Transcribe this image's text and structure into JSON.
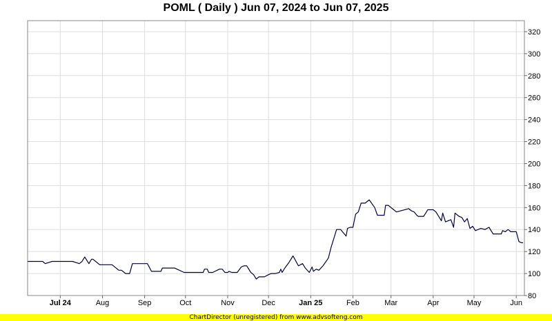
{
  "chart_data": {
    "type": "line",
    "title": "POML ( Daily ) Jun 07, 2024 to Jun 07, 2025",
    "xlabel": "",
    "ylabel": "",
    "ylim": [
      80,
      330
    ],
    "yticks": [
      80,
      100,
      120,
      140,
      160,
      180,
      200,
      220,
      240,
      260,
      280,
      300,
      320
    ],
    "xticks": [
      {
        "label": "Jul 24",
        "date": "2024-07-01",
        "bold": true
      },
      {
        "label": "Aug",
        "date": "2024-08-01",
        "bold": false
      },
      {
        "label": "Sep",
        "date": "2024-09-01",
        "bold": false
      },
      {
        "label": "Oct",
        "date": "2024-10-01",
        "bold": false
      },
      {
        "label": "Nov",
        "date": "2024-11-01",
        "bold": false
      },
      {
        "label": "Dec",
        "date": "2024-12-01",
        "bold": false
      },
      {
        "label": "Jan 25",
        "date": "2025-01-01",
        "bold": true
      },
      {
        "label": "Feb",
        "date": "2025-02-01",
        "bold": false
      },
      {
        "label": "Mar",
        "date": "2025-03-01",
        "bold": false
      },
      {
        "label": "Apr",
        "date": "2025-04-01",
        "bold": false
      },
      {
        "label": "May",
        "date": "2025-05-01",
        "bold": false
      },
      {
        "label": "Jun",
        "date": "2025-06-01",
        "bold": false
      }
    ],
    "grid": true,
    "line_color": "#000040",
    "series": [
      {
        "x": [
          "2024-06-07",
          "2024-06-14",
          "2024-06-18",
          "2024-06-20",
          "2024-06-25",
          "2024-07-01",
          "2024-07-10",
          "2024-07-15",
          "2024-07-17",
          "2024-07-19",
          "2024-07-22",
          "2024-07-24",
          "2024-07-25",
          "2024-07-30",
          "2024-08-01",
          "2024-08-05",
          "2024-08-08",
          "2024-08-13",
          "2024-08-15",
          "2024-08-18",
          "2024-08-20",
          "2024-08-21",
          "2024-08-23",
          "2024-09-03",
          "2024-09-06",
          "2024-09-13",
          "2024-09-14",
          "2024-09-18",
          "2024-09-19",
          "2024-09-23",
          "2024-09-30",
          "2024-10-14",
          "2024-10-15",
          "2024-10-17",
          "2024-10-18",
          "2024-10-21",
          "2024-10-26",
          "2024-10-28",
          "2024-10-30",
          "2024-11-01",
          "2024-11-02",
          "2024-11-04",
          "2024-11-05",
          "2024-11-08",
          "2024-11-11",
          "2024-11-13",
          "2024-11-15",
          "2024-11-18",
          "2024-11-20",
          "2024-11-22",
          "2024-11-24",
          "2024-11-26",
          "2024-11-28",
          "2024-12-01",
          "2024-12-03",
          "2024-12-06",
          "2024-12-09",
          "2024-12-10",
          "2024-12-11",
          "2024-12-13",
          "2024-12-16",
          "2024-12-19",
          "2024-12-23",
          "2024-12-26",
          "2024-12-28",
          "2024-12-31",
          "2025-01-02",
          "2025-01-03",
          "2025-01-05",
          "2025-01-07",
          "2025-01-10",
          "2025-01-14",
          "2025-01-16",
          "2025-01-17",
          "2025-01-20",
          "2025-01-23",
          "2025-01-27",
          "2025-01-28",
          "2025-01-30",
          "2025-01-31",
          "2025-02-01",
          "2025-02-03",
          "2025-02-05",
          "2025-02-07",
          "2025-02-10",
          "2025-02-13",
          "2025-02-17",
          "2025-02-19",
          "2025-02-21",
          "2025-02-24",
          "2025-02-25",
          "2025-02-27",
          "2025-02-28",
          "2025-03-03",
          "2025-03-05",
          "2025-03-14",
          "2025-03-16",
          "2025-03-18",
          "2025-03-20",
          "2025-03-21",
          "2025-03-24",
          "2025-03-25",
          "2025-03-27",
          "2025-03-28",
          "2025-03-31",
          "2025-04-01",
          "2025-04-03",
          "2025-04-07",
          "2025-04-08",
          "2025-04-10",
          "2025-04-14",
          "2025-04-16",
          "2025-04-17",
          "2025-04-20",
          "2025-04-22",
          "2025-04-24",
          "2025-04-26",
          "2025-04-28",
          "2025-04-30",
          "2025-05-02",
          "2025-05-04",
          "2025-05-06",
          "2025-05-09",
          "2025-05-12",
          "2025-05-15",
          "2025-05-18",
          "2025-05-21",
          "2025-05-22",
          "2025-05-24",
          "2025-05-26",
          "2025-05-28",
          "2025-05-30",
          "2025-06-01",
          "2025-06-03",
          "2025-06-05",
          "2025-06-06"
        ],
        "y": [
          111,
          111,
          111,
          109,
          111,
          111,
          111,
          109,
          111,
          115,
          109,
          113,
          113,
          108,
          108,
          108,
          108,
          103,
          103,
          100,
          100,
          100,
          109,
          109,
          102,
          102,
          105,
          105,
          105,
          105,
          101,
          101,
          104,
          104,
          101,
          101,
          104,
          104,
          101,
          101,
          102,
          101,
          101,
          101,
          106,
          107,
          107,
          101,
          99,
          95,
          97,
          97,
          97,
          99,
          100,
          100,
          101,
          104,
          101,
          105,
          110,
          116,
          107,
          109,
          105,
          101,
          106,
          102,
          104,
          103,
          107,
          114,
          124,
          128,
          140,
          140,
          134,
          141,
          142,
          142,
          142,
          154,
          156,
          164,
          164,
          167,
          160,
          153,
          153,
          153,
          162,
          162,
          161,
          158,
          156,
          159,
          157,
          156,
          153,
          152,
          152,
          152,
          156,
          158,
          158,
          158,
          156,
          148,
          155,
          147,
          149,
          142,
          155,
          152,
          151,
          147,
          150,
          141,
          143,
          139,
          140,
          141,
          140,
          142,
          136,
          136,
          136,
          139,
          138,
          140,
          138,
          138,
          138,
          129,
          128,
          128
        ]
      }
    ]
  },
  "footer": {
    "text": "ChartDirector (unregistered) from www.advsofteng.com"
  }
}
